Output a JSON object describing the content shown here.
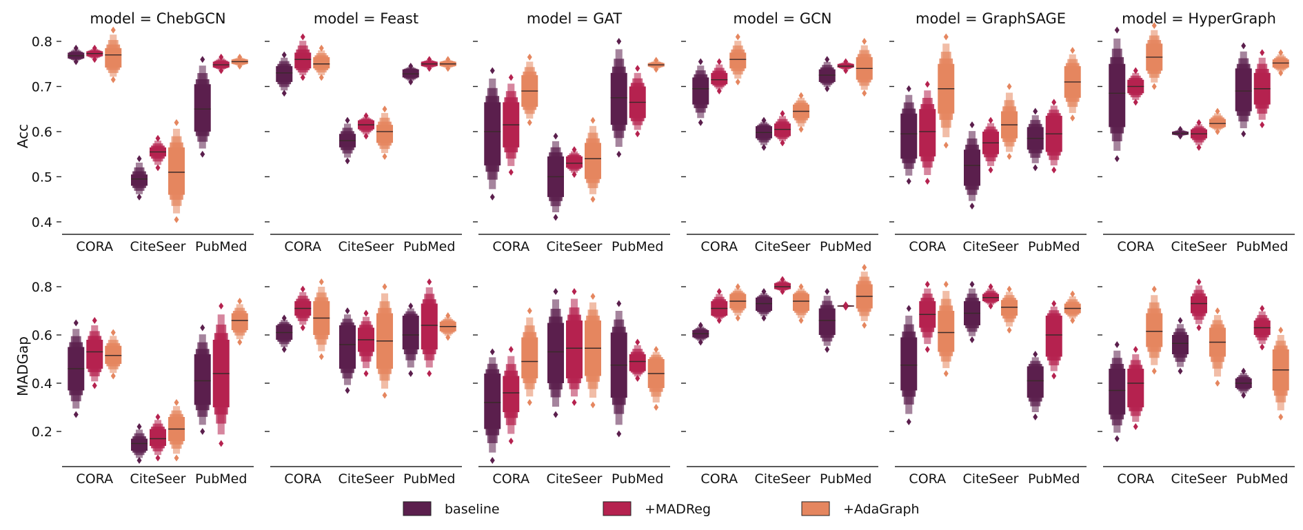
{
  "colors": {
    "baseline": "#5b1f4d",
    "madreg": "#b5224f",
    "adagraph": "#e5865f",
    "median_line": "#3a2a2a",
    "axis": "#222222"
  },
  "legend": {
    "position": "bottom-center",
    "items": [
      {
        "label": "baseline",
        "color_key": "baseline"
      },
      {
        "label": "+MADReg",
        "color_key": "madreg"
      },
      {
        "label": "+AdaGraph",
        "color_key": "adagraph"
      }
    ]
  },
  "chart_data": {
    "type": "boxen",
    "row_metrics": [
      "Acc",
      "MADGap"
    ],
    "row_ylims": [
      [
        0.38,
        0.8
      ],
      [
        0.08,
        0.86
      ]
    ],
    "row_ticks": [
      [
        0.4,
        0.5,
        0.6,
        0.7,
        0.8
      ],
      [
        0.2,
        0.4,
        0.6,
        0.8
      ]
    ],
    "row_tick_labels": [
      [
        "0.4",
        "0.5",
        "0.6",
        "0.7",
        "0.8"
      ],
      [
        "0.2",
        "0.4",
        "0.6",
        "0.8"
      ]
    ],
    "datasets": [
      "CORA",
      "CiteSeer",
      "PubMed"
    ],
    "series": [
      "baseline",
      "+MADReg",
      "+AdaGraph"
    ],
    "note": "each box: [min, q1, median, q3, max]",
    "panels": [
      {
        "title": "model = ChebGCN",
        "Acc": [
          [
            [
              0.755,
              0.762,
              0.768,
              0.775,
              0.785
            ],
            [
              0.76,
              0.767,
              0.773,
              0.778,
              0.785
            ],
            [
              0.715,
              0.742,
              0.77,
              0.785,
              0.825
            ]
          ],
          [
            [
              0.455,
              0.48,
              0.495,
              0.505,
              0.54
            ],
            [
              0.52,
              0.545,
              0.555,
              0.565,
              0.585
            ],
            [
              0.405,
              0.46,
              0.51,
              0.565,
              0.62
            ]
          ],
          [
            [
              0.55,
              0.6,
              0.65,
              0.705,
              0.76
            ],
            [
              0.735,
              0.742,
              0.748,
              0.755,
              0.765
            ],
            [
              0.745,
              0.75,
              0.755,
              0.76,
              0.765
            ]
          ]
        ],
        "MADGap": [
          [
            [
              0.27,
              0.37,
              0.46,
              0.55,
              0.65
            ],
            [
              0.39,
              0.46,
              0.53,
              0.58,
              0.66
            ],
            [
              0.43,
              0.48,
              0.515,
              0.555,
              0.61
            ]
          ],
          [
            [
              0.08,
              0.12,
              0.15,
              0.17,
              0.22
            ],
            [
              0.09,
              0.14,
              0.17,
              0.21,
              0.26
            ],
            [
              0.09,
              0.16,
              0.21,
              0.26,
              0.32
            ]
          ],
          [
            [
              0.2,
              0.31,
              0.41,
              0.52,
              0.63
            ],
            [
              0.15,
              0.3,
              0.44,
              0.58,
              0.72
            ],
            [
              0.57,
              0.62,
              0.66,
              0.69,
              0.74
            ]
          ]
        ]
      },
      {
        "title": "model = Feast",
        "Acc": [
          [
            [
              0.685,
              0.71,
              0.73,
              0.745,
              0.77
            ],
            [
              0.72,
              0.74,
              0.76,
              0.775,
              0.81
            ],
            [
              0.72,
              0.74,
              0.75,
              0.765,
              0.785
            ]
          ],
          [
            [
              0.535,
              0.565,
              0.58,
              0.595,
              0.625
            ],
            [
              0.59,
              0.605,
              0.615,
              0.625,
              0.635
            ],
            [
              0.545,
              0.575,
              0.6,
              0.615,
              0.65
            ]
          ],
          [
            [
              0.71,
              0.72,
              0.728,
              0.738,
              0.745
            ],
            [
              0.74,
              0.745,
              0.75,
              0.755,
              0.76
            ],
            [
              0.74,
              0.745,
              0.75,
              0.755,
              0.76
            ]
          ]
        ],
        "MADGap": [
          [
            [
              0.54,
              0.58,
              0.61,
              0.64,
              0.67
            ],
            [
              0.63,
              0.68,
              0.71,
              0.74,
              0.79
            ],
            [
              0.51,
              0.6,
              0.67,
              0.74,
              0.82
            ]
          ],
          [
            [
              0.37,
              0.46,
              0.56,
              0.64,
              0.7
            ],
            [
              0.44,
              0.53,
              0.58,
              0.63,
              0.69
            ],
            [
              0.35,
              0.46,
              0.575,
              0.69,
              0.8
            ]
          ],
          [
            [
              0.44,
              0.54,
              0.6,
              0.68,
              0.72
            ],
            [
              0.44,
              0.54,
              0.64,
              0.73,
              0.82
            ],
            [
              0.59,
              0.615,
              0.635,
              0.655,
              0.68
            ]
          ]
        ]
      },
      {
        "title": "model = GAT",
        "Acc": [
          [
            [
              0.455,
              0.525,
              0.6,
              0.665,
              0.735
            ],
            [
              0.51,
              0.565,
              0.615,
              0.665,
              0.72
            ],
            [
              0.62,
              0.655,
              0.69,
              0.725,
              0.765
            ]
          ],
          [
            [
              0.41,
              0.455,
              0.5,
              0.545,
              0.59
            ],
            [
              0.505,
              0.52,
              0.53,
              0.545,
              0.56
            ],
            [
              0.45,
              0.495,
              0.54,
              0.575,
              0.625
            ]
          ],
          [
            [
              0.55,
              0.615,
              0.675,
              0.73,
              0.8
            ],
            [
              0.595,
              0.63,
              0.665,
              0.7,
              0.74
            ],
            [
              0.738,
              0.744,
              0.748,
              0.752,
              0.758
            ]
          ]
        ],
        "MADGap": [
          [
            [
              0.08,
              0.21,
              0.32,
              0.44,
              0.53
            ],
            [
              0.16,
              0.28,
              0.36,
              0.43,
              0.54
            ],
            [
              0.32,
              0.42,
              0.49,
              0.59,
              0.7
            ]
          ],
          [
            [
              0.27,
              0.4,
              0.53,
              0.65,
              0.78
            ],
            [
              0.32,
              0.42,
              0.545,
              0.66,
              0.78
            ],
            [
              0.31,
              0.43,
              0.545,
              0.66,
              0.76
            ]
          ],
          [
            [
              0.19,
              0.34,
              0.475,
              0.61,
              0.73
            ],
            [
              0.42,
              0.45,
              0.49,
              0.52,
              0.57
            ],
            [
              0.3,
              0.38,
              0.44,
              0.5,
              0.54
            ]
          ]
        ]
      },
      {
        "title": "model = GCN",
        "Acc": [
          [
            [
              0.62,
              0.66,
              0.695,
              0.72,
              0.755
            ],
            [
              0.69,
              0.705,
              0.715,
              0.73,
              0.755
            ],
            [
              0.71,
              0.74,
              0.76,
              0.775,
              0.81
            ]
          ],
          [
            [
              0.565,
              0.585,
              0.598,
              0.612,
              0.625
            ],
            [
              0.575,
              0.59,
              0.605,
              0.618,
              0.64
            ],
            [
              0.605,
              0.63,
              0.645,
              0.66,
              0.68
            ]
          ],
          [
            [
              0.695,
              0.71,
              0.725,
              0.738,
              0.76
            ],
            [
              0.735,
              0.742,
              0.745,
              0.75,
              0.755
            ],
            [
              0.685,
              0.715,
              0.74,
              0.765,
              0.8
            ]
          ]
        ],
        "MADGap": [
          [
            [
              0.57,
              0.59,
              0.605,
              0.62,
              0.64
            ],
            [
              0.66,
              0.68,
              0.71,
              0.74,
              0.78
            ],
            [
              0.67,
              0.71,
              0.74,
              0.77,
              0.8
            ]
          ],
          [
            [
              0.67,
              0.7,
              0.73,
              0.755,
              0.78
            ],
            [
              0.78,
              0.79,
              0.8,
              0.815,
              0.83
            ],
            [
              0.66,
              0.7,
              0.74,
              0.77,
              0.8
            ]
          ],
          [
            [
              0.54,
              0.6,
              0.66,
              0.71,
              0.78
            ],
            [
              0.715,
              0.718,
              0.72,
              0.722,
              0.725
            ],
            [
              0.64,
              0.71,
              0.76,
              0.81,
              0.88
            ]
          ]
        ]
      },
      {
        "title": "model = GraphSAGE",
        "Acc": [
          [
            [
              0.49,
              0.54,
              0.595,
              0.64,
              0.695
            ],
            [
              0.49,
              0.545,
              0.6,
              0.65,
              0.705
            ],
            [
              0.57,
              0.64,
              0.695,
              0.75,
              0.81
            ]
          ],
          [
            [
              0.435,
              0.48,
              0.525,
              0.56,
              0.615
            ],
            [
              0.515,
              0.55,
              0.575,
              0.6,
              0.625
            ],
            [
              0.545,
              0.585,
              0.615,
              0.645,
              0.7
            ]
          ],
          [
            [
              0.52,
              0.56,
              0.585,
              0.61,
              0.645
            ],
            [
              0.515,
              0.555,
              0.595,
              0.635,
              0.665
            ],
            [
              0.63,
              0.675,
              0.71,
              0.745,
              0.78
            ]
          ]
        ],
        "MADGap": [
          [
            [
              0.24,
              0.37,
              0.475,
              0.59,
              0.71
            ],
            [
              0.54,
              0.63,
              0.685,
              0.74,
              0.81
            ],
            [
              0.44,
              0.53,
              0.61,
              0.7,
              0.81
            ]
          ],
          [
            [
              0.58,
              0.64,
              0.69,
              0.74,
              0.81
            ],
            [
              0.72,
              0.74,
              0.755,
              0.77,
              0.8
            ],
            [
              0.62,
              0.68,
              0.715,
              0.745,
              0.79
            ]
          ],
          [
            [
              0.26,
              0.34,
              0.41,
              0.47,
              0.52
            ],
            [
              0.43,
              0.51,
              0.6,
              0.68,
              0.73
            ],
            [
              0.66,
              0.69,
              0.71,
              0.73,
              0.77
            ]
          ]
        ]
      },
      {
        "title": "model = HyperGraph",
        "Acc": [
          [
            [
              0.54,
              0.61,
              0.685,
              0.75,
              0.825
            ],
            [
              0.665,
              0.685,
              0.7,
              0.715,
              0.735
            ],
            [
              0.7,
              0.735,
              0.765,
              0.795,
              0.835
            ]
          ],
          [
            [
              0.59,
              0.593,
              0.596,
              0.6,
              0.605
            ],
            [
              0.565,
              0.585,
              0.595,
              0.605,
              0.62
            ],
            [
              0.6,
              0.61,
              0.618,
              0.628,
              0.645
            ]
          ],
          [
            [
              0.595,
              0.645,
              0.69,
              0.74,
              0.79
            ],
            [
              0.615,
              0.66,
              0.695,
              0.73,
              0.775
            ],
            [
              0.73,
              0.742,
              0.752,
              0.76,
              0.775
            ]
          ]
        ],
        "MADGap": [
          [
            [
              0.17,
              0.27,
              0.37,
              0.46,
              0.56
            ],
            [
              0.22,
              0.3,
              0.4,
              0.46,
              0.54
            ],
            [
              0.45,
              0.55,
              0.615,
              0.69,
              0.79
            ]
          ],
          [
            [
              0.45,
              0.52,
              0.565,
              0.6,
              0.66
            ],
            [
              0.63,
              0.69,
              0.73,
              0.76,
              0.82
            ],
            [
              0.4,
              0.51,
              0.57,
              0.63,
              0.7
            ]
          ],
          [
            [
              0.35,
              0.38,
              0.4,
              0.42,
              0.45
            ],
            [
              0.55,
              0.6,
              0.63,
              0.66,
              0.71
            ],
            [
              0.26,
              0.37,
              0.455,
              0.54,
              0.62
            ]
          ]
        ]
      }
    ]
  }
}
